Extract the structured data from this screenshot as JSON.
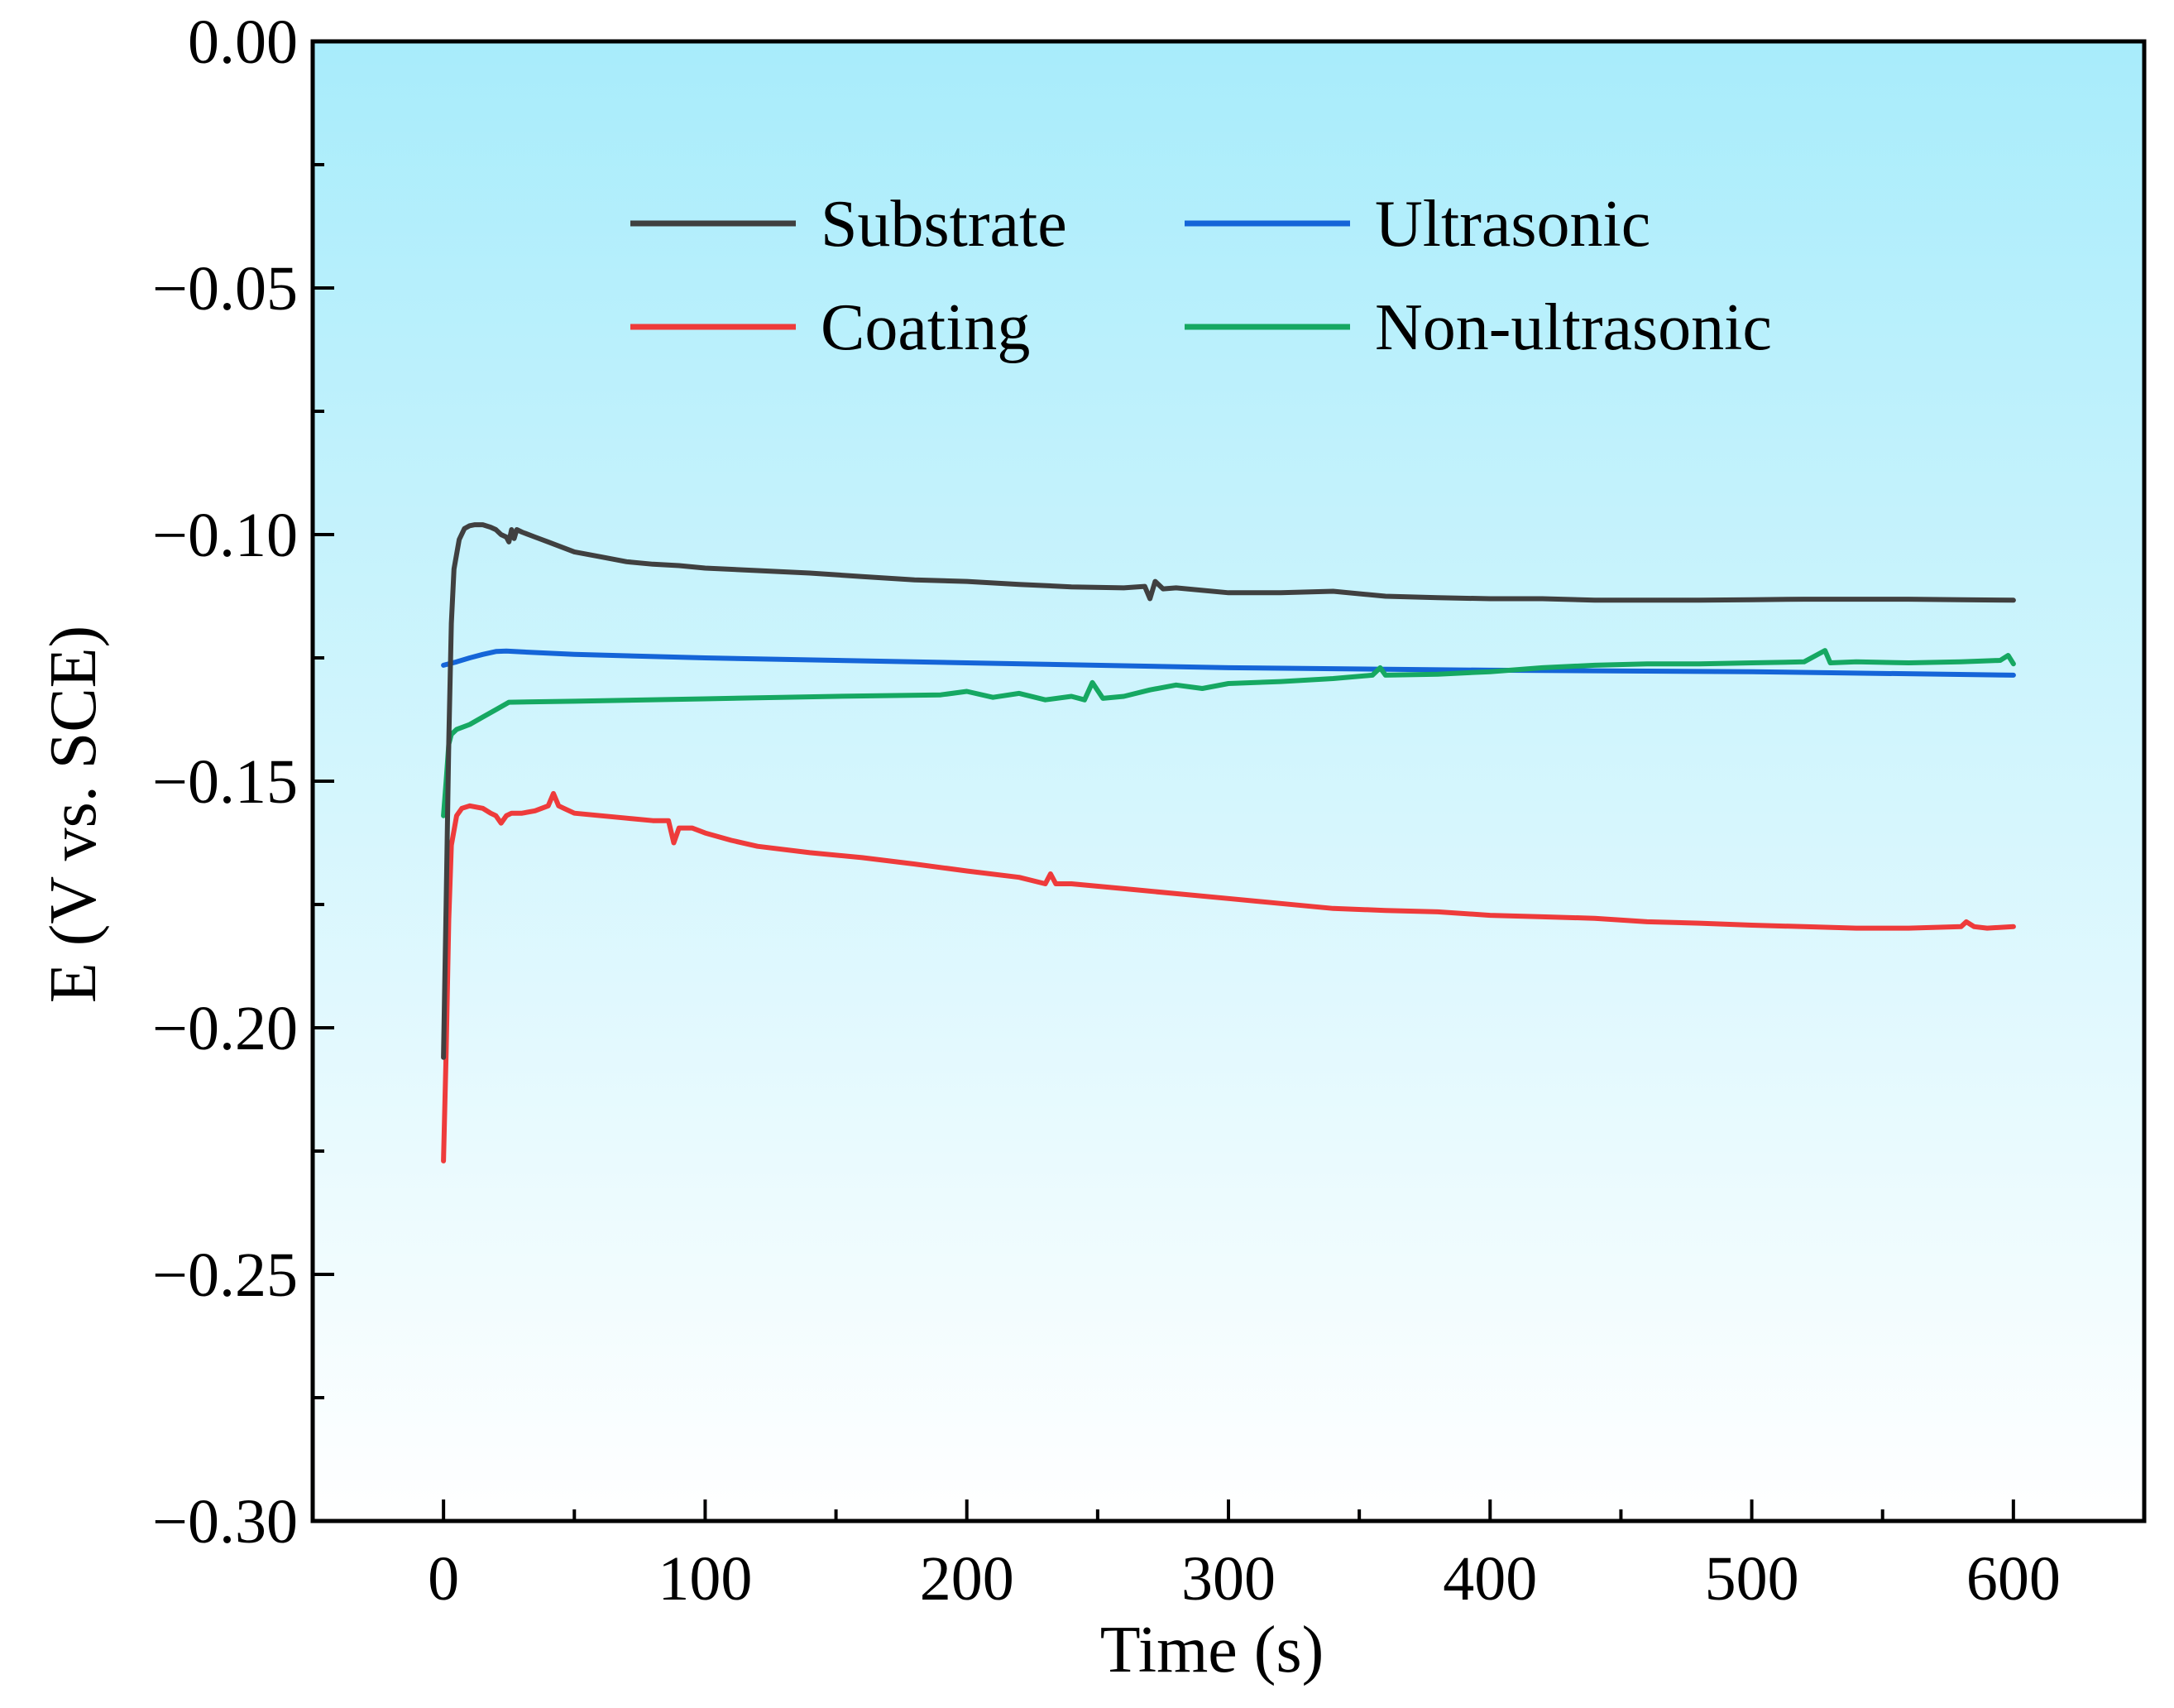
{
  "chart_data": {
    "type": "line",
    "title": "",
    "xlabel": "Time (s)",
    "ylabel": "E (V vs. SCE)",
    "xlim": [
      -50,
      650
    ],
    "ylim": [
      -0.3,
      0.0
    ],
    "x_ticks": [
      0,
      100,
      200,
      300,
      400,
      500,
      600
    ],
    "x_tick_labels": [
      "0",
      "100",
      "200",
      "300",
      "400",
      "500",
      "600"
    ],
    "y_ticks": [
      0.0,
      -0.05,
      -0.1,
      -0.15,
      -0.2,
      -0.25,
      -0.3
    ],
    "y_tick_labels": [
      "0.00",
      "−0.05",
      "−0.10",
      "−0.15",
      "−0.20",
      "−0.25",
      "−0.30"
    ],
    "grid": false,
    "background": {
      "top_color": "#a8ecfb",
      "bottom_color": "#ffffff"
    },
    "legend": {
      "placement": "top-center",
      "columns": 2
    },
    "series": [
      {
        "name": "Substrate",
        "color": "#404040",
        "x": [
          0,
          1,
          2,
          3,
          4,
          6,
          8,
          10,
          12,
          15,
          18,
          20,
          22,
          24,
          25,
          26,
          27,
          28,
          30,
          35,
          40,
          50,
          60,
          70,
          80,
          90,
          100,
          120,
          140,
          160,
          180,
          200,
          220,
          240,
          260,
          268,
          270,
          272,
          275,
          280,
          300,
          320,
          340,
          360,
          380,
          400,
          420,
          440,
          460,
          480,
          500,
          520,
          540,
          560,
          580,
          600
        ],
        "y": [
          -0.206,
          -0.175,
          -0.142,
          -0.118,
          -0.107,
          -0.101,
          -0.0988,
          -0.0982,
          -0.098,
          -0.098,
          -0.0985,
          -0.099,
          -0.1,
          -0.1005,
          -0.1015,
          -0.099,
          -0.1008,
          -0.099,
          -0.0995,
          -0.1005,
          -0.1015,
          -0.1035,
          -0.1045,
          -0.1055,
          -0.106,
          -0.1063,
          -0.1068,
          -0.1073,
          -0.1078,
          -0.1085,
          -0.1092,
          -0.1095,
          -0.1101,
          -0.1106,
          -0.1108,
          -0.1105,
          -0.113,
          -0.1095,
          -0.111,
          -0.1108,
          -0.1118,
          -0.1118,
          -0.1115,
          -0.1125,
          -0.1128,
          -0.113,
          -0.113,
          -0.1133,
          -0.1133,
          -0.1133,
          -0.1132,
          -0.1131,
          -0.1131,
          -0.1131,
          -0.1132,
          -0.1133
        ]
      },
      {
        "name": "Coating",
        "color": "#ee3b3b",
        "x": [
          0,
          1,
          2,
          3,
          5,
          7,
          10,
          15,
          18,
          20,
          22,
          24,
          26,
          30,
          35,
          40,
          42,
          44,
          46,
          50,
          60,
          70,
          80,
          86,
          88,
          90,
          95,
          100,
          110,
          120,
          140,
          160,
          180,
          200,
          220,
          230,
          232,
          234,
          240,
          260,
          280,
          300,
          320,
          340,
          360,
          380,
          400,
          420,
          440,
          460,
          480,
          500,
          520,
          540,
          560,
          580,
          582,
          585,
          590,
          600
        ],
        "y": [
          -0.227,
          -0.205,
          -0.178,
          -0.163,
          -0.157,
          -0.1555,
          -0.155,
          -0.1555,
          -0.1565,
          -0.157,
          -0.1585,
          -0.157,
          -0.1565,
          -0.1565,
          -0.156,
          -0.155,
          -0.1525,
          -0.155,
          -0.1555,
          -0.1565,
          -0.157,
          -0.1575,
          -0.158,
          -0.158,
          -0.1625,
          -0.1595,
          -0.1595,
          -0.1605,
          -0.162,
          -0.1632,
          -0.1645,
          -0.1655,
          -0.1668,
          -0.1682,
          -0.1695,
          -0.1708,
          -0.1688,
          -0.1708,
          -0.1708,
          -0.1718,
          -0.1728,
          -0.1738,
          -0.1748,
          -0.1758,
          -0.1762,
          -0.1765,
          -0.1772,
          -0.1775,
          -0.1778,
          -0.1785,
          -0.1788,
          -0.1792,
          -0.1795,
          -0.1798,
          -0.1798,
          -0.1795,
          -0.1785,
          -0.1795,
          -0.1798,
          -0.1795
        ]
      },
      {
        "name": "Ultrasonic",
        "color": "#1565d8",
        "x": [
          0,
          5,
          10,
          15,
          20,
          24,
          30,
          50,
          100,
          200,
          300,
          400,
          500,
          600
        ],
        "y": [
          -0.1265,
          -0.1258,
          -0.125,
          -0.1243,
          -0.1237,
          -0.1236,
          -0.1238,
          -0.1243,
          -0.125,
          -0.126,
          -0.127,
          -0.1275,
          -0.1278,
          -0.1285
        ]
      },
      {
        "name": "Non-ultrasonic",
        "color": "#16a862",
        "x": [
          0,
          1,
          2,
          3,
          5,
          10,
          15,
          20,
          25,
          50,
          100,
          150,
          190,
          200,
          210,
          220,
          230,
          240,
          245,
          248,
          252,
          260,
          270,
          280,
          290,
          300,
          320,
          340,
          355,
          358,
          360,
          380,
          400,
          420,
          440,
          460,
          480,
          500,
          520,
          528,
          530,
          540,
          560,
          580,
          595,
          598,
          600
        ],
        "y": [
          -0.157,
          -0.15,
          -0.1425,
          -0.1405,
          -0.1395,
          -0.1385,
          -0.137,
          -0.1355,
          -0.134,
          -0.1338,
          -0.1333,
          -0.1328,
          -0.1325,
          -0.1318,
          -0.133,
          -0.1322,
          -0.1335,
          -0.1328,
          -0.1335,
          -0.13,
          -0.1332,
          -0.1328,
          -0.1315,
          -0.1305,
          -0.1312,
          -0.1302,
          -0.1298,
          -0.1292,
          -0.1285,
          -0.127,
          -0.1285,
          -0.1283,
          -0.1278,
          -0.127,
          -0.1265,
          -0.1262,
          -0.1262,
          -0.126,
          -0.1258,
          -0.1235,
          -0.126,
          -0.1258,
          -0.126,
          -0.1258,
          -0.1255,
          -0.1245,
          -0.1262
        ]
      }
    ]
  }
}
